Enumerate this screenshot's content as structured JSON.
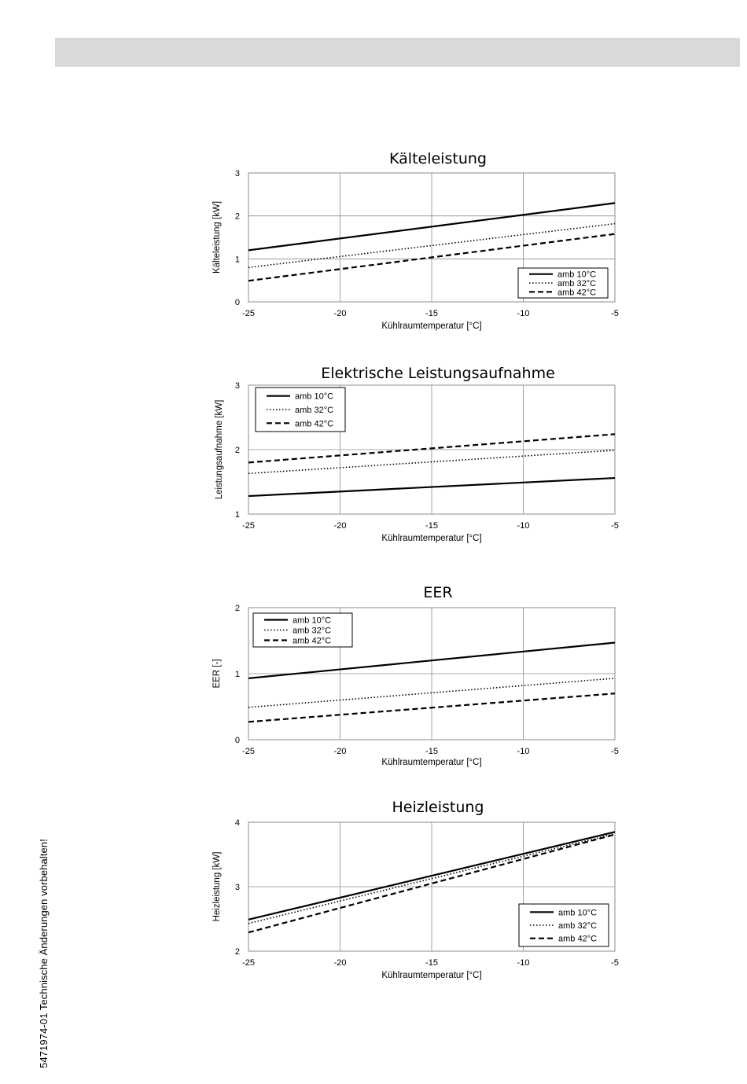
{
  "footer_note": "5471974-01 Technische Änderungen vorbehalten!",
  "chart_data": [
    {
      "type": "line",
      "title": "Kälteleistung",
      "xlabel": "Kühlraumtemperatur [°C]",
      "ylabel": "Kälteleistung [kW]",
      "xlim": [
        -25,
        -5
      ],
      "ylim": [
        0,
        3
      ],
      "xticks": [
        -25,
        -20,
        -15,
        -10,
        -5
      ],
      "yticks": [
        0,
        1,
        2,
        3
      ],
      "grid": true,
      "legend_position": "bottom-right",
      "series": [
        {
          "name": "amb 10°C",
          "style": "solid",
          "x": [
            -25,
            -5
          ],
          "y": [
            1.2,
            2.3
          ]
        },
        {
          "name": "amb 32°C",
          "style": "dotted",
          "x": [
            -25,
            -5
          ],
          "y": [
            0.8,
            1.82
          ]
        },
        {
          "name": "amb 42°C",
          "style": "dashed",
          "x": [
            -25,
            -5
          ],
          "y": [
            0.49,
            1.58
          ]
        }
      ]
    },
    {
      "type": "line",
      "title": "Elektrische Leistungsaufnahme",
      "xlabel": "Kühlraumtemperatur [°C]",
      "ylabel": "Leistungsaufnahme [kW]",
      "xlim": [
        -25,
        -5
      ],
      "ylim": [
        1,
        3
      ],
      "xticks": [
        -25,
        -20,
        -15,
        -10,
        -5
      ],
      "yticks": [
        1,
        2,
        3
      ],
      "grid": true,
      "legend_position": "top-left",
      "series": [
        {
          "name": "amb 10°C",
          "style": "solid",
          "x": [
            -25,
            -5
          ],
          "y": [
            1.28,
            1.56
          ]
        },
        {
          "name": "amb 32°C",
          "style": "dotted",
          "x": [
            -25,
            -5
          ],
          "y": [
            1.63,
            1.99
          ]
        },
        {
          "name": "amb 42°C",
          "style": "dashed",
          "x": [
            -25,
            -5
          ],
          "y": [
            1.8,
            2.24
          ]
        }
      ]
    },
    {
      "type": "line",
      "title": "EER",
      "xlabel": "Kühlraumtemperatur [°C]",
      "ylabel": "EER [-]",
      "xlim": [
        -25,
        -5
      ],
      "ylim": [
        0,
        2
      ],
      "xticks": [
        -25,
        -20,
        -15,
        -10,
        -5
      ],
      "yticks": [
        0,
        1,
        2
      ],
      "grid": true,
      "legend_position": "top-left",
      "series": [
        {
          "name": "amb 10°C",
          "style": "solid",
          "x": [
            -25,
            -5
          ],
          "y": [
            0.93,
            1.47
          ]
        },
        {
          "name": "amb 32°C",
          "style": "dotted",
          "x": [
            -25,
            -5
          ],
          "y": [
            0.49,
            0.93
          ]
        },
        {
          "name": "amb 42°C",
          "style": "dashed",
          "x": [
            -25,
            -5
          ],
          "y": [
            0.27,
            0.7
          ]
        }
      ]
    },
    {
      "type": "line",
      "title": "Heizleistung",
      "xlabel": "Kühlraumtemperatur [°C]",
      "ylabel": "Heizleistung [kW]",
      "xlim": [
        -25,
        -5
      ],
      "ylim": [
        2,
        4
      ],
      "xticks": [
        -25,
        -20,
        -15,
        -10,
        -5
      ],
      "yticks": [
        2,
        3,
        4
      ],
      "grid": true,
      "legend_position": "bottom-right",
      "series": [
        {
          "name": "amb 10°C",
          "style": "solid",
          "x": [
            -25,
            -5
          ],
          "y": [
            2.49,
            3.85
          ]
        },
        {
          "name": "amb 32°C",
          "style": "dotted",
          "x": [
            -25,
            -5
          ],
          "y": [
            2.43,
            3.82
          ]
        },
        {
          "name": "amb 42°C",
          "style": "dashed",
          "x": [
            -25,
            -5
          ],
          "y": [
            2.29,
            3.81
          ]
        }
      ]
    }
  ]
}
